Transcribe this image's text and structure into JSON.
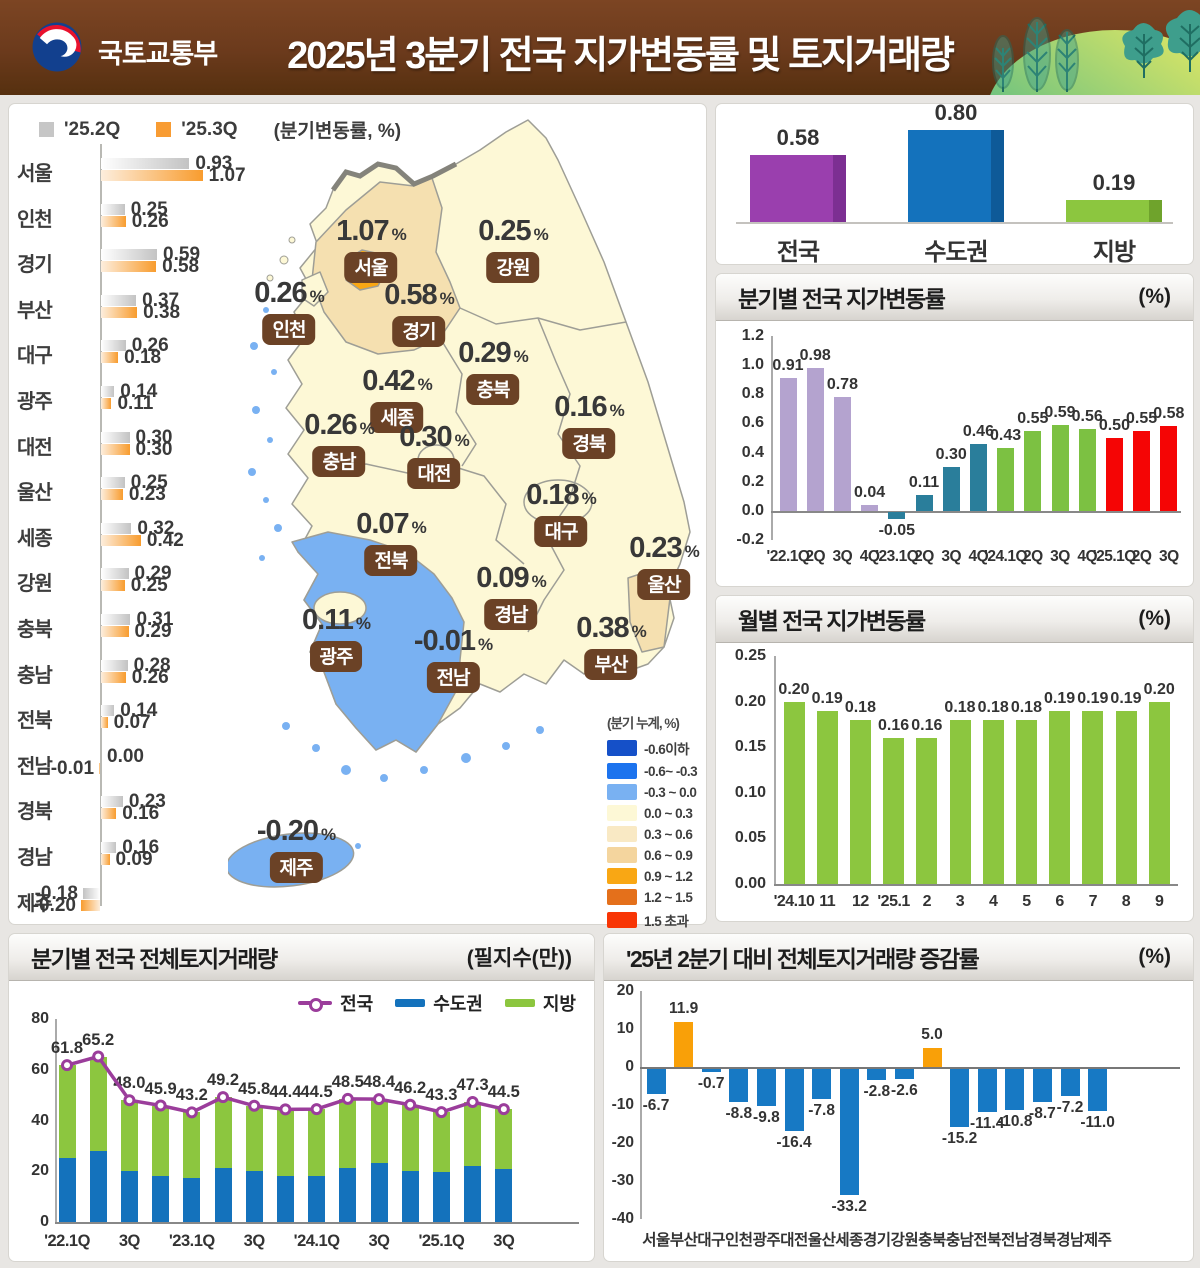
{
  "header": {
    "agency": "국토교통부",
    "title": "2025년 3분기 전국 지가변동률 및 토지거래량"
  },
  "map_legend": {
    "title": "(분기 누계, %)",
    "classes": [
      {
        "label": "-0.6이하",
        "color": "#1550c8"
      },
      {
        "label": "-0.6~ -0.3",
        "color": "#1c73ee"
      },
      {
        "label": "-0.3 ~ 0.0",
        "color": "#79b1f2"
      },
      {
        "label": "0.0 ~ 0.3",
        "color": "#fdf8d6"
      },
      {
        "label": "0.3 ~ 0.6",
        "color": "#f9e9c4"
      },
      {
        "label": "0.6 ~ 0.9",
        "color": "#f4d59e"
      },
      {
        "label": "0.9 ~ 1.2",
        "color": "#f9a714"
      },
      {
        "label": "1.2 ~ 1.5",
        "color": "#e4701b"
      },
      {
        "label": "1.5 초과",
        "color": "#f83505"
      }
    ]
  },
  "chart_data": [
    {
      "id": "regional_quarterly",
      "type": "bar",
      "orientation": "horizontal",
      "note": "(분기변동률, %)",
      "legend": [
        {
          "name": "'25.2Q",
          "color": "#c6c6c6"
        },
        {
          "name": "'25.3Q",
          "color": "#f89c33"
        }
      ],
      "categories": [
        "서울",
        "인천",
        "경기",
        "부산",
        "대구",
        "광주",
        "대전",
        "울산",
        "세종",
        "강원",
        "충북",
        "충남",
        "전북",
        "전남",
        "경북",
        "경남",
        "제주"
      ],
      "series": [
        {
          "name": "'25.2Q",
          "values": [
            0.93,
            0.25,
            0.59,
            0.37,
            0.26,
            0.14,
            0.3,
            0.25,
            0.32,
            0.29,
            0.31,
            0.28,
            0.14,
            0.0,
            0.23,
            0.16,
            -0.18
          ]
        },
        {
          "name": "'25.3Q",
          "values": [
            1.07,
            0.26,
            0.58,
            0.38,
            0.18,
            0.11,
            0.3,
            0.23,
            0.42,
            0.25,
            0.29,
            0.26,
            0.07,
            -0.01,
            0.16,
            0.09,
            -0.2
          ]
        }
      ]
    },
    {
      "id": "map_choropleth",
      "type": "heatmap",
      "note": "(분기 누계, %)",
      "regions": [
        {
          "name": "서울",
          "value": 1.07
        },
        {
          "name": "강원",
          "value": 0.25
        },
        {
          "name": "인천",
          "value": 0.26
        },
        {
          "name": "경기",
          "value": 0.58
        },
        {
          "name": "충북",
          "value": 0.29
        },
        {
          "name": "세종",
          "value": 0.42
        },
        {
          "name": "경북",
          "value": 0.16
        },
        {
          "name": "충남",
          "value": 0.26
        },
        {
          "name": "대전",
          "value": 0.3
        },
        {
          "name": "대구",
          "value": 0.18
        },
        {
          "name": "전북",
          "value": 0.07
        },
        {
          "name": "울산",
          "value": 0.23
        },
        {
          "name": "경남",
          "value": 0.09
        },
        {
          "name": "광주",
          "value": 0.11
        },
        {
          "name": "부산",
          "value": 0.38
        },
        {
          "name": "전남",
          "value": -0.01
        },
        {
          "name": "제주",
          "value": -0.2
        }
      ]
    },
    {
      "id": "summary",
      "type": "bar",
      "categories": [
        "전국",
        "수도권",
        "지방"
      ],
      "values": [
        0.58,
        0.8,
        0.19
      ],
      "colors": [
        "#9a3fae",
        "#1472bc",
        "#8cc63f"
      ],
      "edge_colors": [
        "#7c2f92",
        "#0e5a98",
        "#6fa32c"
      ]
    },
    {
      "id": "national_quarterly",
      "type": "bar",
      "title": "분기별 전국 지가변동률",
      "unit": "(%)",
      "categories": [
        "'22.1Q",
        "2Q",
        "3Q",
        "4Q",
        "'23.1Q",
        "2Q",
        "3Q",
        "4Q",
        "'24.1Q",
        "2Q",
        "3Q",
        "4Q",
        "'25.1Q",
        "2Q",
        "3Q"
      ],
      "values": [
        0.91,
        0.98,
        0.78,
        0.04,
        -0.05,
        0.11,
        0.3,
        0.46,
        0.43,
        0.55,
        0.59,
        0.56,
        0.5,
        0.55,
        0.58
      ],
      "bar_colors": [
        "#b4a3cf",
        "#b4a3cf",
        "#b4a3cf",
        "#b4a3cf",
        "#2a7e9b",
        "#2a7e9b",
        "#2a7e9b",
        "#2a7e9b",
        "#7cc142",
        "#7cc142",
        "#7cc142",
        "#7cc142",
        "#f50505",
        "#f50505",
        "#f50505"
      ],
      "ylim": [
        -0.2,
        1.2
      ],
      "yticks": [
        1.2,
        1.0,
        0.8,
        0.6,
        0.4,
        0.2,
        0.0,
        -0.2
      ]
    },
    {
      "id": "national_monthly",
      "type": "bar",
      "title": "월별 전국 지가변동률",
      "unit": "(%)",
      "categories": [
        "'24.10",
        "11",
        "12",
        "'25.1",
        "2",
        "3",
        "4",
        "5",
        "6",
        "7",
        "8",
        "9"
      ],
      "values": [
        0.2,
        0.19,
        0.18,
        0.16,
        0.16,
        0.18,
        0.18,
        0.18,
        0.19,
        0.19,
        0.19,
        0.2
      ],
      "color": "#8cc63f",
      "ylim": [
        0,
        0.25
      ],
      "yticks": [
        0.25,
        0.2,
        0.15,
        0.1,
        0.05,
        0.0
      ]
    },
    {
      "id": "volume_quarterly",
      "type": "area",
      "title": "분기별 전국 전체토지거래량",
      "unit": "(필지수(만))",
      "categories": [
        "'22.1Q",
        "2Q",
        "3Q",
        "4Q",
        "'23.1Q",
        "2Q",
        "3Q",
        "4Q",
        "'24.1Q",
        "2Q",
        "3Q",
        "4Q",
        "'25.1Q",
        "2Q",
        "3Q"
      ],
      "x_labels_shown": [
        "'22.1Q",
        "3Q",
        "'23.1Q",
        "3Q",
        "'24.1Q",
        "3Q",
        "'25.1Q",
        "3Q"
      ],
      "series": [
        {
          "name": "전국",
          "kind": "line",
          "color": "#9b3d9b",
          "values": [
            61.8,
            65.2,
            48.0,
            45.9,
            43.2,
            49.2,
            45.8,
            44.4,
            44.5,
            48.5,
            48.4,
            46.2,
            43.3,
            47.3,
            44.5
          ]
        },
        {
          "name": "수도권",
          "kind": "bar",
          "color": "#1472bc",
          "values": [
            25.3,
            28.0,
            20.1,
            18.1,
            17.4,
            21.1,
            20.0,
            18.3,
            18.0,
            21.4,
            23.2,
            20.1,
            19.6,
            22.1,
            20.9
          ]
        },
        {
          "name": "지방",
          "kind": "bar",
          "color": "#8cc63f",
          "values": [
            36.5,
            37.2,
            27.9,
            27.8,
            25.8,
            28.1,
            25.8,
            26.1,
            26.5,
            27.1,
            25.2,
            26.1,
            23.7,
            25.2,
            23.6
          ]
        }
      ],
      "ylim": [
        0,
        80
      ],
      "yticks": [
        80,
        60,
        40,
        20,
        0
      ]
    },
    {
      "id": "volume_change",
      "type": "bar",
      "title": "'25년 2분기 대비 전체토지거래량 증감률",
      "unit": "(%)",
      "categories": [
        "서울",
        "부산",
        "대구",
        "인천",
        "광주",
        "대전",
        "울산",
        "세종",
        "경기",
        "강원",
        "충북",
        "충남",
        "전북",
        "전남",
        "경북",
        "경남",
        "제주"
      ],
      "values": [
        -6.7,
        11.9,
        -0.7,
        -8.8,
        -9.8,
        -16.4,
        -7.8,
        -33.2,
        -2.8,
        -2.6,
        5.0,
        -15.2,
        -11.4,
        -10.8,
        -8.7,
        -7.2,
        -11.0
      ],
      "positive_color": "#f9a008",
      "negative_color": "#1779c4",
      "ylim": [
        -40,
        20
      ],
      "yticks": [
        20,
        10,
        0,
        -10,
        -20,
        -30,
        -40
      ]
    }
  ]
}
